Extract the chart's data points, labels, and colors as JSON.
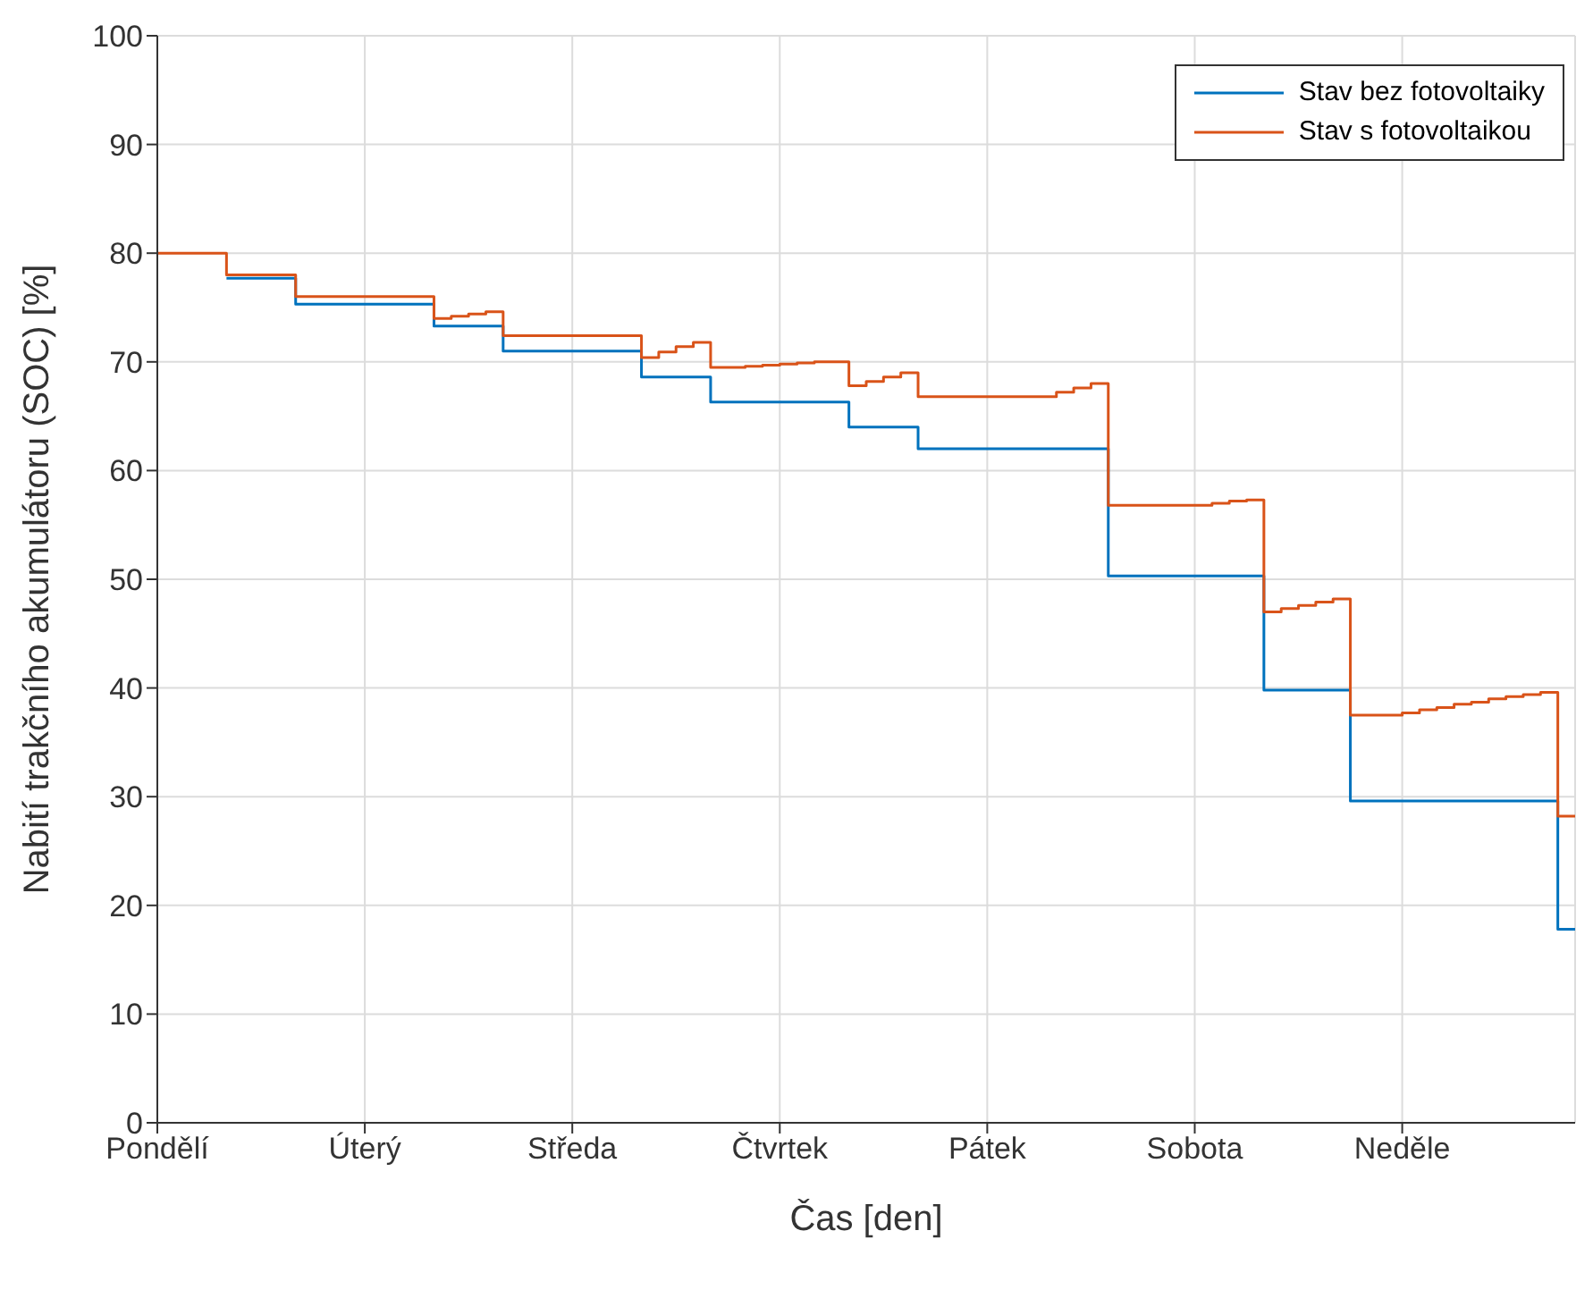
{
  "chart_data": {
    "type": "step",
    "xlabel": "Čas [den]",
    "ylabel": "Nabití trakčního akumulátoru (SOC) [%]",
    "categories": [
      "Pondělí",
      null,
      null,
      null,
      null,
      null,
      null,
      null,
      null,
      null,
      null,
      null,
      "Úterý",
      null,
      null,
      null,
      null,
      null,
      null,
      null,
      null,
      null,
      null,
      null,
      "Středa",
      null,
      null,
      null,
      null,
      null,
      null,
      null,
      null,
      null,
      null,
      null,
      "Čtvrtek",
      null,
      null,
      null,
      null,
      null,
      null,
      null,
      null,
      null,
      null,
      null,
      "Pátek",
      null,
      null,
      null,
      null,
      null,
      null,
      null,
      null,
      null,
      null,
      null,
      "Sobota",
      null,
      null,
      null,
      null,
      null,
      null,
      null,
      null,
      null,
      null,
      null,
      "Neděle",
      null,
      null,
      null,
      null,
      null,
      null,
      null,
      null,
      null,
      null
    ],
    "ylim": [
      0,
      100
    ],
    "yticks": [
      0,
      10,
      20,
      30,
      40,
      50,
      60,
      70,
      80,
      90,
      100
    ],
    "grid": true,
    "legend": "top right",
    "line_style": "solid",
    "series": [
      {
        "name": "Stav bez fotovoltaiky",
        "color": "#0072bd",
        "values": [
          null,
          null,
          null,
          null,
          77.7,
          77.7,
          77.7,
          77.7,
          75.3,
          75.3,
          75.3,
          75.3,
          75.3,
          75.3,
          75.3,
          75.3,
          73.3,
          73.3,
          73.3,
          73.3,
          71,
          71,
          71,
          71,
          71,
          71,
          71,
          71,
          68.6,
          68.6,
          68.6,
          68.6,
          66.3,
          66.3,
          66.3,
          66.3,
          66.3,
          66.3,
          66.3,
          66.3,
          64,
          64,
          64,
          64,
          62,
          62,
          62,
          62,
          62,
          62,
          62,
          62,
          62,
          62,
          62,
          50.3,
          50.3,
          50.3,
          50.3,
          50.3,
          50.3,
          50.3,
          50.3,
          50.3,
          39.8,
          39.8,
          39.8,
          39.8,
          39.8,
          29.6,
          29.6,
          29.6,
          29.6,
          29.6,
          29.6,
          29.6,
          29.6,
          29.6,
          29.6,
          29.6,
          29.6,
          17.8,
          17.8
        ]
      },
      {
        "name": "Stav s fotovoltaikou",
        "color": "#d95319",
        "values": [
          80,
          80,
          80,
          80,
          78,
          78,
          78,
          78,
          76,
          76,
          76,
          76,
          76,
          76,
          76,
          76,
          74,
          74.2,
          74.4,
          74.6,
          72.4,
          72.4,
          72.4,
          72.4,
          72.4,
          72.4,
          72.4,
          72.4,
          70.4,
          70.9,
          71.4,
          71.8,
          69.5,
          69.5,
          69.6,
          69.7,
          69.8,
          69.9,
          70,
          70,
          67.8,
          68.2,
          68.6,
          69,
          66.8,
          66.8,
          66.8,
          66.8,
          66.8,
          66.8,
          66.8,
          66.8,
          67.2,
          67.6,
          68,
          56.8,
          56.8,
          56.8,
          56.8,
          56.8,
          56.8,
          57,
          57.2,
          57.3,
          47,
          47.3,
          47.6,
          47.9,
          48.2,
          37.5,
          37.5,
          37.5,
          37.7,
          38,
          38.2,
          38.5,
          38.7,
          39,
          39.2,
          39.4,
          39.6,
          28.2,
          28.2
        ]
      }
    ]
  }
}
